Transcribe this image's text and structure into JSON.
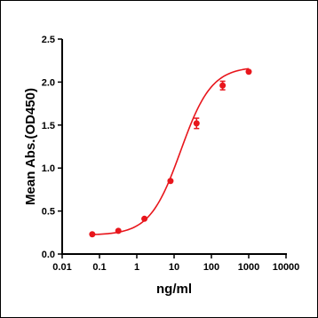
{
  "chart_data": {
    "type": "scatter",
    "title": "",
    "xlabel": "ng/ml",
    "ylabel": "Mean Abs.(OD450)",
    "x_scale": "log",
    "xlim": [
      0.01,
      10000
    ],
    "ylim": [
      0,
      2.5
    ],
    "x_ticks": [
      "0.01",
      "0.1",
      "1",
      "10",
      "100",
      "1000",
      "10000"
    ],
    "y_ticks": [
      "0.0",
      "0.5",
      "1.0",
      "1.5",
      "2.0",
      "2.5"
    ],
    "grid": false,
    "legend": "none",
    "series": [
      {
        "color": "#e8161c",
        "points": [
          {
            "x": 0.064,
            "y": 0.23
          },
          {
            "x": 0.32,
            "y": 0.27
          },
          {
            "x": 1.6,
            "y": 0.41
          },
          {
            "x": 8,
            "y": 0.85
          },
          {
            "x": 40,
            "y": 1.52
          },
          {
            "x": 200,
            "y": 1.96
          },
          {
            "x": 1000,
            "y": 2.12
          }
        ],
        "error": [
          0.01,
          0.01,
          0.01,
          0.01,
          0.06,
          0.05,
          0.01
        ],
        "fit": "4PL sigmoid"
      }
    ]
  }
}
